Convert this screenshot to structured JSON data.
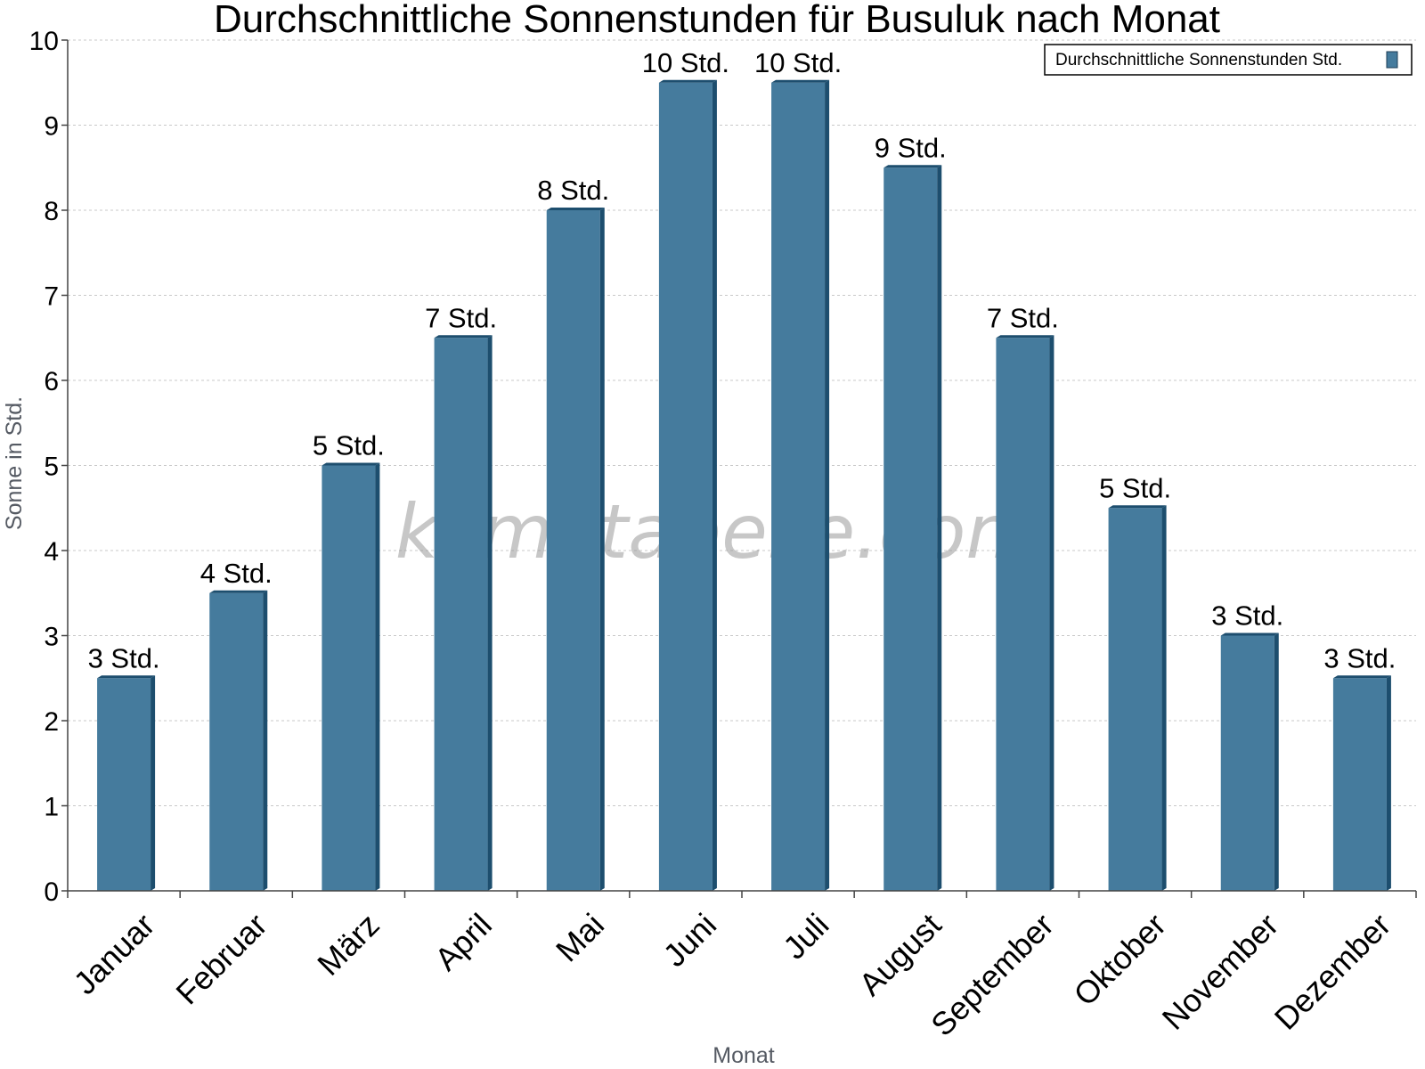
{
  "chart_data": {
    "type": "bar",
    "title": "Durchschnittliche Sonnenstunden für Busuluk nach Monat",
    "xlabel": "Monat",
    "ylabel": "Sonne in Std.",
    "ylim": [
      0,
      10
    ],
    "yticks": [
      "0",
      "1",
      "2",
      "3",
      "4",
      "5",
      "6",
      "7",
      "8",
      "9",
      "10"
    ],
    "categories": [
      "Januar",
      "Februar",
      "März",
      "April",
      "Mai",
      "Juni",
      "Juli",
      "August",
      "September",
      "Oktober",
      "November",
      "Dezember"
    ],
    "series": [
      {
        "name": "Durchschnittliche Sonnenstunden Std.",
        "values": [
          2.5,
          3.5,
          5.0,
          6.5,
          8.0,
          9.5,
          9.5,
          8.5,
          6.5,
          4.5,
          3.0,
          2.5
        ],
        "labels": [
          "3 Std.",
          "4 Std.",
          "5 Std.",
          "7 Std.",
          "8 Std.",
          "10 Std.",
          "10 Std.",
          "9 Std.",
          "7 Std.",
          "5 Std.",
          "3 Std.",
          "3 Std."
        ]
      }
    ],
    "grid": true,
    "legend_position": "top-right",
    "colors": {
      "bar": "#457b9d",
      "bar_shade": "#1d4e6e"
    },
    "watermark": "klimatabelle.com"
  }
}
